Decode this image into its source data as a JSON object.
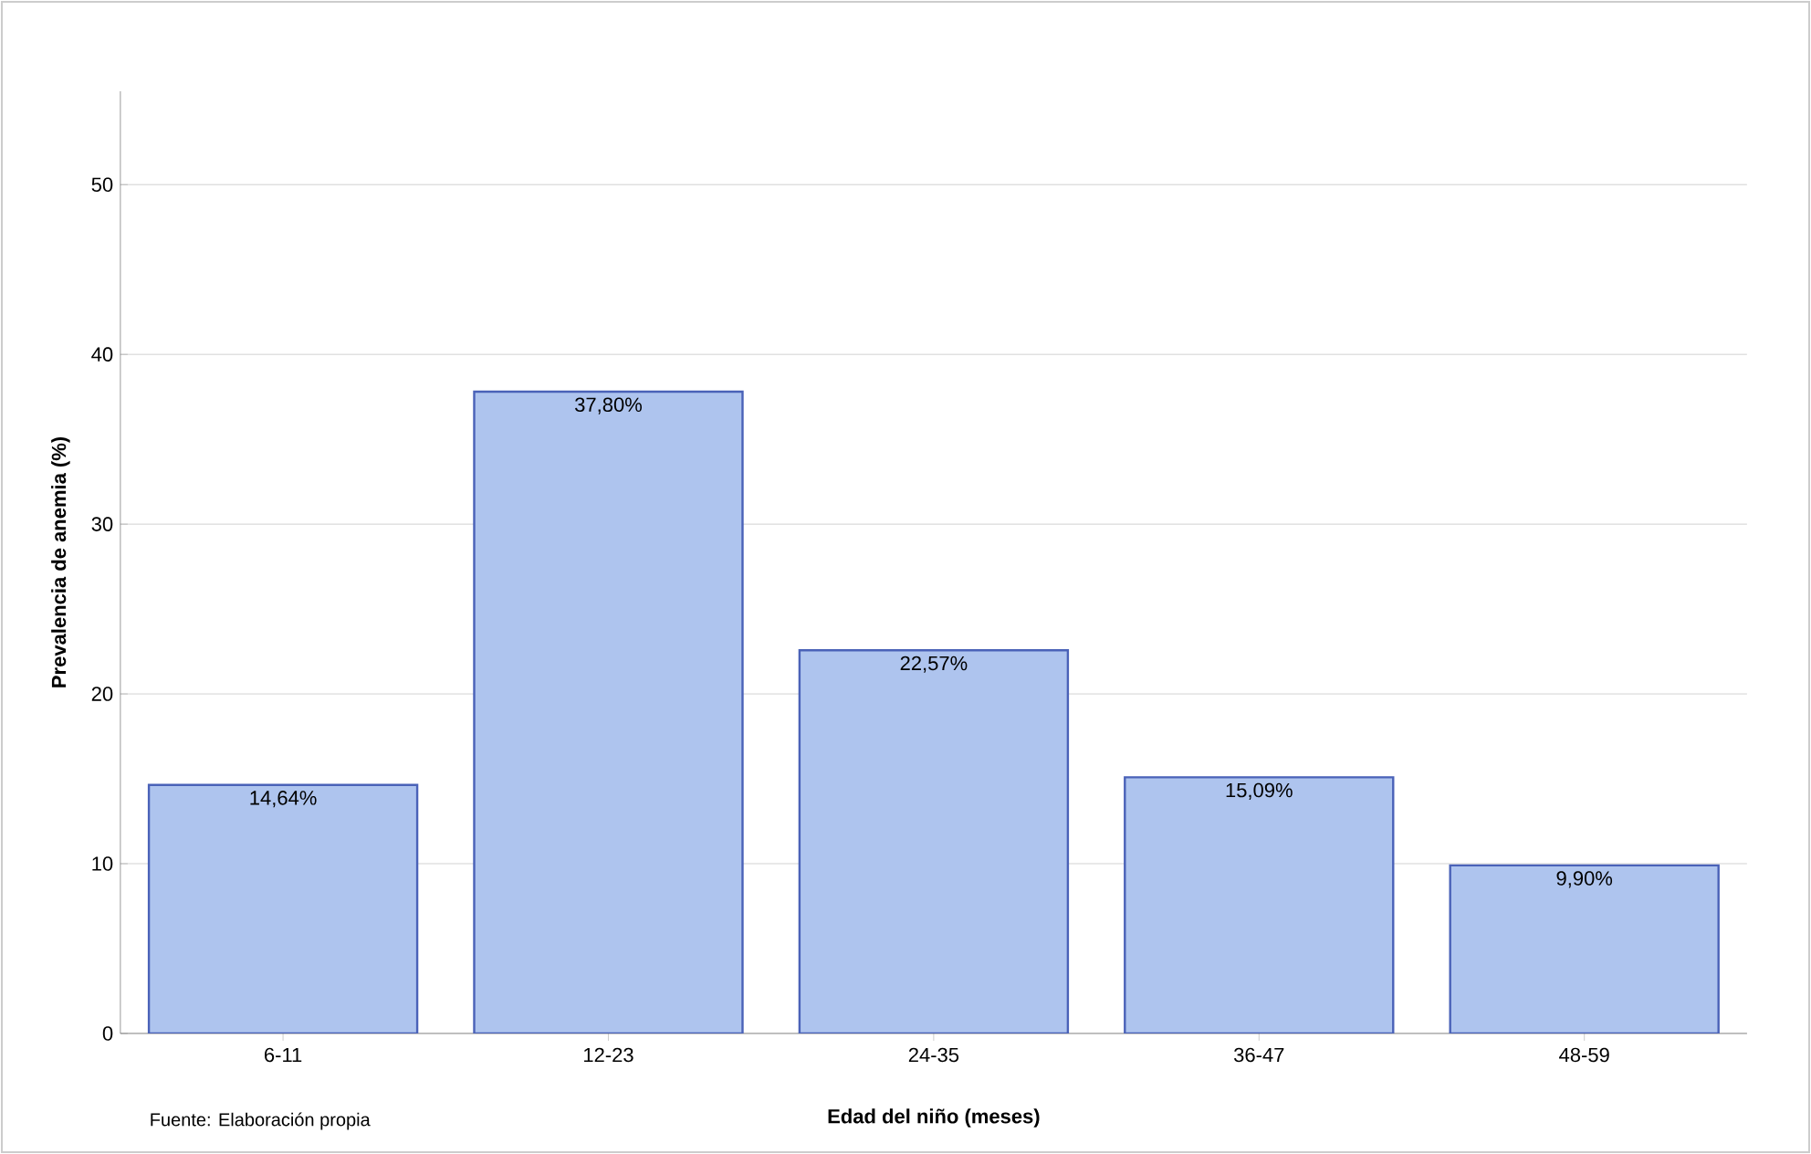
{
  "chart_data": {
    "type": "bar",
    "xlabel": "Edad del niño (meses)",
    "ylabel": "Prevalencia de anemia (%)",
    "categories": [
      "6-11",
      "12-23",
      "24-35",
      "36-47",
      "48-59"
    ],
    "values": [
      14.64,
      37.8,
      22.57,
      15.09,
      9.9
    ],
    "value_labels": [
      "14,64%",
      "37,80%",
      "22,57%",
      "15,09%",
      "9,90%"
    ],
    "color": "#aec4ee",
    "ylim": [
      0,
      55.5
    ],
    "yticks": [
      0,
      10,
      20,
      30,
      40,
      50
    ],
    "grid": "y",
    "annotations": [
      "Fuente: Elaboración propia"
    ]
  }
}
